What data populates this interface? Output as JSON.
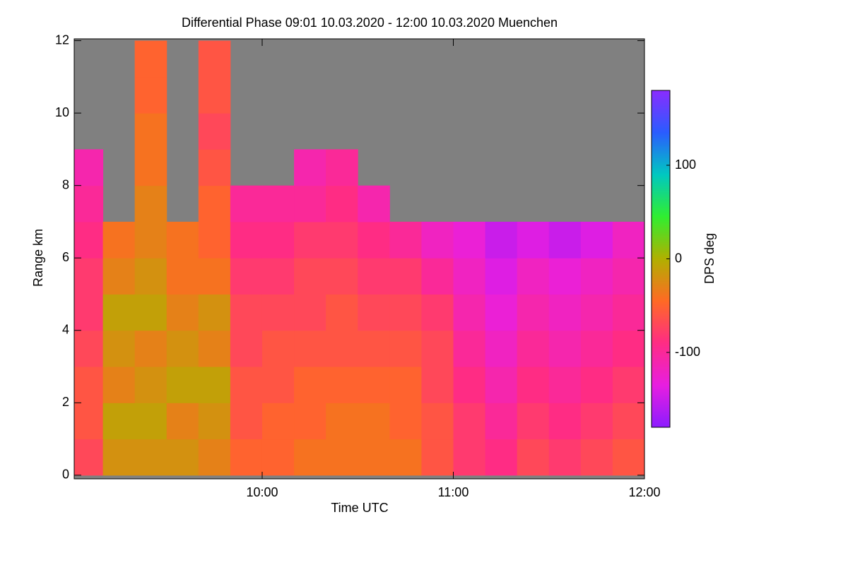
{
  "chart_data": {
    "type": "heatmap",
    "title": "Differential Phase   09:01 10.03.2020 - 12:00 10.03.2020 Muenchen",
    "xlabel": "Time UTC",
    "ylabel": "Range km",
    "colorbar_label": "DPS deg",
    "x": [
      9.0167,
      9.1667,
      9.3333,
      9.5,
      9.6667,
      9.8333,
      10,
      10.1667,
      10.3333,
      10.5,
      10.6667,
      10.8333,
      11,
      11.1667,
      11.3333,
      11.5,
      11.6667,
      11.8333,
      12
    ],
    "y": [
      0,
      1,
      2,
      3,
      4,
      5,
      6,
      7,
      8,
      9,
      10,
      11,
      12
    ],
    "z": [
      [
        -70,
        -60,
        -60,
        -70,
        -80,
        -80,
        -90,
        -100,
        -110,
        null,
        null,
        null
      ],
      [
        -20,
        -10,
        -30,
        -20,
        -10,
        -30,
        -40,
        null,
        null,
        null,
        null,
        null
      ],
      [
        -20,
        -10,
        -20,
        -30,
        -10,
        -20,
        -30,
        -30,
        -40,
        -40,
        -50,
        -50
      ],
      [
        -20,
        -30,
        -10,
        -20,
        -30,
        -40,
        -40,
        null,
        null,
        null,
        null,
        null
      ],
      [
        -30,
        -20,
        -10,
        -30,
        -20,
        -40,
        -50,
        -50,
        -60,
        -70,
        -60,
        -60
      ],
      [
        -50,
        -60,
        -60,
        -70,
        -70,
        -80,
        -90,
        -100,
        null,
        null,
        null,
        null
      ],
      [
        -50,
        -50,
        -60,
        -60,
        -70,
        -80,
        -90,
        -100,
        null,
        null,
        null,
        null
      ],
      [
        -40,
        -50,
        -50,
        -60,
        -70,
        -70,
        -80,
        -100,
        -110,
        null,
        null,
        null
      ],
      [
        -40,
        -40,
        -50,
        -60,
        -60,
        -70,
        -80,
        -90,
        -100,
        null,
        null,
        null
      ],
      [
        -40,
        -40,
        -50,
        -60,
        -70,
        -80,
        -90,
        -110,
        null,
        null,
        null,
        null
      ],
      [
        -40,
        -50,
        -50,
        -60,
        -70,
        -80,
        -100,
        null,
        null,
        null,
        null,
        null
      ],
      [
        -60,
        -60,
        -70,
        -70,
        -80,
        -100,
        -120,
        null,
        null,
        null,
        null,
        null
      ],
      [
        -80,
        -80,
        -90,
        -100,
        -110,
        -120,
        -130,
        null,
        null,
        null,
        null,
        null
      ],
      [
        -90,
        -100,
        -110,
        -120,
        -130,
        -140,
        -150,
        null,
        null,
        null,
        null,
        null
      ],
      [
        -70,
        -80,
        -90,
        -100,
        -110,
        -120,
        -140,
        null,
        null,
        null,
        null,
        null
      ],
      [
        -80,
        -90,
        -100,
        -110,
        -120,
        -130,
        -150,
        null,
        null,
        null,
        null,
        null
      ],
      [
        -70,
        -80,
        -90,
        -100,
        -110,
        -120,
        -140,
        null,
        null,
        null,
        null,
        null
      ],
      [
        -60,
        -70,
        -80,
        -90,
        -100,
        -110,
        -120,
        null,
        null,
        null,
        null,
        null
      ]
    ],
    "xlim": [
      9.0167,
      12
    ],
    "ylim": [
      -0.1,
      12.05
    ],
    "xticks": [
      {
        "value": 10,
        "label": "10:00"
      },
      {
        "value": 11,
        "label": "11:00"
      },
      {
        "value": 12,
        "label": "12:00"
      }
    ],
    "yticks": [
      0,
      2,
      4,
      6,
      8,
      10,
      12
    ],
    "clim": [
      -180,
      180
    ],
    "cticks": [
      -100,
      0,
      100
    ],
    "colormap": [
      "#8c1cff",
      "#e81ee0",
      "#ff2c84",
      "#ff6a24",
      "#b0b000",
      "#30ee30",
      "#00c8c0",
      "#2a5cff",
      "#8a2cff"
    ],
    "nodata_color": "#808080"
  }
}
